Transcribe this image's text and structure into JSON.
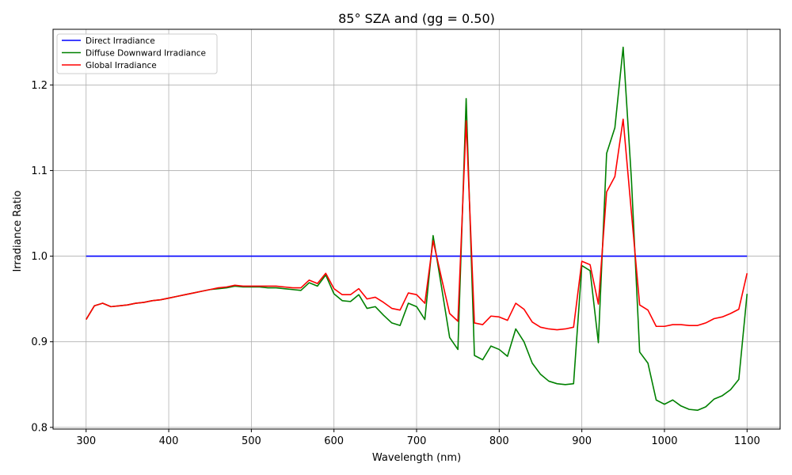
{
  "chart_data": {
    "type": "line",
    "title": "85° SZA and (gg = 0.50)",
    "xlabel": "Wavelength (nm)",
    "ylabel": "Irradiance Ratio",
    "xlim": [
      260,
      1140
    ],
    "ylim": [
      0.798,
      1.265
    ],
    "xticks": [
      300,
      400,
      500,
      600,
      700,
      800,
      900,
      1000,
      1100
    ],
    "yticks": [
      0.8,
      0.9,
      1.0,
      1.1,
      1.2
    ],
    "xtick_labels": [
      "300",
      "400",
      "500",
      "600",
      "700",
      "800",
      "900",
      "1000",
      "1100"
    ],
    "ytick_labels": [
      "0.8",
      "0.9",
      "1.0",
      "1.1",
      "1.2"
    ],
    "grid": true,
    "legend_position": "top-left",
    "x": [
      300,
      310,
      320,
      330,
      340,
      350,
      360,
      370,
      380,
      390,
      400,
      410,
      420,
      430,
      440,
      450,
      460,
      470,
      480,
      490,
      500,
      510,
      520,
      530,
      540,
      550,
      560,
      570,
      580,
      590,
      600,
      610,
      620,
      630,
      640,
      650,
      660,
      670,
      680,
      690,
      700,
      710,
      720,
      730,
      740,
      750,
      760,
      770,
      780,
      790,
      800,
      810,
      820,
      830,
      840,
      850,
      860,
      870,
      880,
      890,
      900,
      910,
      920,
      930,
      940,
      950,
      960,
      970,
      980,
      990,
      1000,
      1010,
      1020,
      1030,
      1040,
      1050,
      1060,
      1070,
      1080,
      1090,
      1100
    ],
    "series": [
      {
        "name": "Direct Irradiance",
        "color": "#0000ff",
        "values": [
          1,
          1,
          1,
          1,
          1,
          1,
          1,
          1,
          1,
          1,
          1,
          1,
          1,
          1,
          1,
          1,
          1,
          1,
          1,
          1,
          1,
          1,
          1,
          1,
          1,
          1,
          1,
          1,
          1,
          1,
          1,
          1,
          1,
          1,
          1,
          1,
          1,
          1,
          1,
          1,
          1,
          1,
          1,
          1,
          1,
          1,
          1,
          1,
          1,
          1,
          1,
          1,
          1,
          1,
          1,
          1,
          1,
          1,
          1,
          1,
          1,
          1,
          1,
          1,
          1,
          1,
          1,
          1,
          1,
          1,
          1,
          1,
          1,
          1,
          1,
          1,
          1,
          1,
          1,
          1,
          1
        ]
      },
      {
        "name": "Diffuse Downward Irradiance",
        "color": "#008000",
        "values": [
          0.926,
          0.942,
          0.945,
          0.941,
          0.942,
          0.943,
          0.945,
          0.946,
          0.948,
          0.949,
          0.951,
          0.953,
          0.955,
          0.957,
          0.959,
          0.961,
          0.962,
          0.963,
          0.965,
          0.964,
          0.964,
          0.964,
          0.963,
          0.963,
          0.962,
          0.961,
          0.96,
          0.969,
          0.965,
          0.978,
          0.956,
          0.948,
          0.947,
          0.955,
          0.939,
          0.941,
          0.931,
          0.922,
          0.919,
          0.945,
          0.941,
          0.926,
          1.024,
          0.965,
          0.905,
          0.891,
          1.184,
          0.884,
          0.879,
          0.895,
          0.891,
          0.883,
          0.915,
          0.9,
          0.875,
          0.862,
          0.854,
          0.851,
          0.85,
          0.851,
          0.989,
          0.983,
          0.899,
          1.12,
          1.15,
          1.244,
          1.09,
          0.888,
          0.875,
          0.832,
          0.827,
          0.832,
          0.825,
          0.821,
          0.82,
          0.824,
          0.833,
          0.837,
          0.844,
          0.856,
          0.956
        ]
      },
      {
        "name": "Global Irradiance",
        "color": "#ff0000",
        "values": [
          0.926,
          0.942,
          0.945,
          0.941,
          0.942,
          0.943,
          0.945,
          0.946,
          0.948,
          0.949,
          0.951,
          0.953,
          0.955,
          0.957,
          0.959,
          0.961,
          0.963,
          0.964,
          0.966,
          0.965,
          0.965,
          0.965,
          0.965,
          0.965,
          0.964,
          0.963,
          0.963,
          0.972,
          0.968,
          0.98,
          0.962,
          0.955,
          0.955,
          0.962,
          0.95,
          0.952,
          0.946,
          0.939,
          0.937,
          0.957,
          0.955,
          0.945,
          1.018,
          0.975,
          0.933,
          0.924,
          1.158,
          0.922,
          0.92,
          0.93,
          0.929,
          0.925,
          0.945,
          0.938,
          0.923,
          0.917,
          0.915,
          0.914,
          0.915,
          0.917,
          0.994,
          0.99,
          0.944,
          1.075,
          1.093,
          1.16,
          1.051,
          0.943,
          0.937,
          0.918,
          0.918,
          0.92,
          0.92,
          0.919,
          0.919,
          0.922,
          0.927,
          0.929,
          0.933,
          0.938,
          0.98
        ]
      }
    ]
  }
}
